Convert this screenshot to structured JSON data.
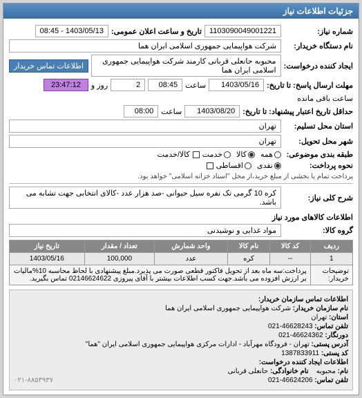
{
  "panel": {
    "title": "جزئیات اطلاعات نیاز"
  },
  "header": {
    "reqno_label": "شماره نیاز:",
    "reqno": "1103090049001221",
    "announce_label": "تاریخ و ساعت اعلان عمومی:",
    "announce": "1403/05/13 - 08:45",
    "buyer_label": "نام دستگاه خریدار:",
    "buyer": "شرکت هواپیمایی جمهوری اسلامی ایران هما",
    "creator_label": "ایجاد کننده درخواست:",
    "creator": "محبوبه حانعلی قربانی کارمند شرکت هواپیمایی جمهوری اسلامی ایران هما",
    "contact_link": "اطلاعات تماس خریدار",
    "deadline_label": "مهلت ارسال پاسخ: تا تاریخ:",
    "deadline_date": "1403/05/16",
    "time_label": "ساعت",
    "deadline_time": "08:45",
    "days_left": "2",
    "days_suffix": "روز و",
    "countdown": "23:47:12",
    "countdown_suffix": "ساعت باقی مانده",
    "valid_label": "حداقل تاریخ اعتبار پیشنهاد: تا تاریخ:",
    "valid_date": "1403/08/20",
    "valid_time": "08:00",
    "province_label": "استان محل تسلیم:",
    "province": "تهران",
    "city_label": "شهر محل تحویل:",
    "city": "تهران",
    "category_label": "طبقه بندی موضوعی:",
    "radios": {
      "all": "همه",
      "goods": "کالا",
      "service": "خدمت"
    },
    "pay_label": "نحوه پرداخت:",
    "pay_radios": {
      "cash": "نقدی",
      "installment": "اقساطی"
    },
    "check_label": "پرداخت تمام یا بخشی از مبلغ خرید،از محل \"اسناد خزانه اسلامی\" خواهد بود.",
    "checkbox": "کالا/خدمت",
    "title_label": "شرح کلی نیاز:",
    "need_title": "کره 10 گرمی تک نفره سیل حیوانی -صد هزار عدد -کالای انتخابی جهت تشابه می باشد."
  },
  "items": {
    "section": "اطلاعات کالاهای مورد نیاز",
    "group_label": "گروه کالا:",
    "group": "مواد غذایی و نوشیدنی",
    "cols": {
      "row": "ردیف",
      "code": "کد کالا",
      "name": "نام کالا",
      "unit": "واحد شمارش",
      "qty": "تعداد / مقدار",
      "date": "تاریخ نیاز"
    },
    "rows": [
      {
        "row": "1",
        "code": "--",
        "name": "کره",
        "unit": "عدد",
        "qty": "100,000",
        "date": "1403/05/16"
      }
    ],
    "desc_label": "توضیحات خریدار:",
    "desc": "پرداخت:سه ماه بعد از تحویل فاکتور قطعی صورت می پذیرد.مبلغ پیشنهادی با لحاظ محاسبه 10%مالیات بر ارزش افزوده می باشد.جهت کسب اطلاعات بیشتر با آقای پیروزی 02146624622 تماس بگیرید."
  },
  "contact": {
    "title": "اطلاعات تماس سازمان خریدار:",
    "org_label": "نام سازمان خریدار:",
    "org": "شرکت هواپیمایی جمهوری اسلامی ایران هما",
    "prov_label": "استان:",
    "prov": "تهران",
    "tel_label": "تلفن تماس:",
    "tel": "46628243-021",
    "fax_label": "دورنگار:",
    "fax": "46624362-021",
    "addr_label": "آدرس پستی:",
    "addr": "تهران - فرودگاه مهرآباد - ادارات مرکزی هواپیمایی جمهوری اسلامی ایران \"هما\"",
    "zip_label": "کد پستی:",
    "zip": "1387833911",
    "sub_title": "اطلاعات ایجاد کننده درخواست:",
    "name_label": "نام:",
    "name": "محبوبه",
    "lname_label": "نام خانوادگی:",
    "lname": "حانعلی قربانی",
    "phone_label": "تلفن تماس:",
    "phone": "46624206-021",
    "grey_phone": "۰۲۱-۸۸۵۳۹۳۷"
  }
}
